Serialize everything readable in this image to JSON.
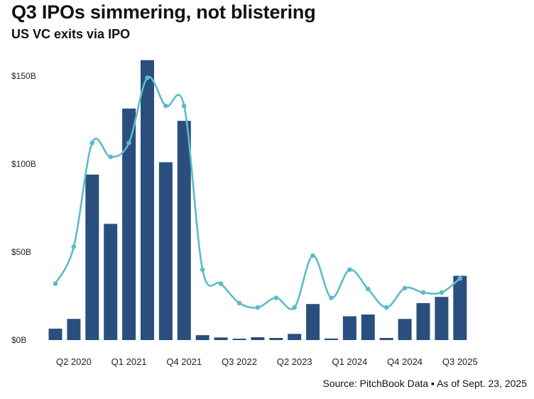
{
  "chart_data": {
    "type": "bar",
    "title": "Q3 IPOs simmering, not blistering",
    "subtitle": "US VC exits via IPO",
    "source": "Source: PitchBook Data ▪ As of Sept. 23, 2025",
    "categories": [
      "Q1 2020",
      "Q2 2020",
      "Q3 2020",
      "Q4 2020",
      "Q1 2021",
      "Q2 2021",
      "Q3 2021",
      "Q4 2021",
      "Q1 2022",
      "Q2 2022",
      "Q3 2022",
      "Q4 2022",
      "Q1 2023",
      "Q2 2023",
      "Q3 2023",
      "Q4 2023",
      "Q1 2024",
      "Q2 2024",
      "Q3 2024",
      "Q4 2024",
      "Q1 2025",
      "Q2 2025",
      "Q3 2025"
    ],
    "tick_labels": {
      "1": "Q2 2020",
      "4": "Q1 2021",
      "7": "Q4 2021",
      "10": "Q3 2022",
      "13": "Q2 2023",
      "16": "Q1 2024",
      "19": "Q4 2024",
      "22": "Q3 2025"
    },
    "yticks": [
      {
        "value": 0,
        "label": "$0B"
      },
      {
        "value": 50,
        "label": "$50B"
      },
      {
        "value": 100,
        "label": "$100B"
      },
      {
        "value": 150,
        "label": "$150B"
      }
    ],
    "ylim": [
      0,
      160
    ],
    "grid": false,
    "legend": "none",
    "series": [
      {
        "type": "bar",
        "color": "#2a4f7f",
        "values": [
          6.5,
          12,
          94,
          66,
          131.5,
          159,
          101,
          124.5,
          2.8,
          1.5,
          0.8,
          1.6,
          1.2,
          3.5,
          20.5,
          0.9,
          13.5,
          14.5,
          1.2,
          12,
          21,
          24.5,
          36.5
        ]
      },
      {
        "type": "line",
        "color": "#5bbcc7",
        "values": [
          32,
          53,
          112,
          104,
          112,
          149,
          133,
          133,
          40,
          32,
          21,
          18.5,
          24,
          18.5,
          48,
          24,
          40,
          29,
          18.5,
          29.5,
          27,
          27,
          35
        ]
      }
    ]
  }
}
